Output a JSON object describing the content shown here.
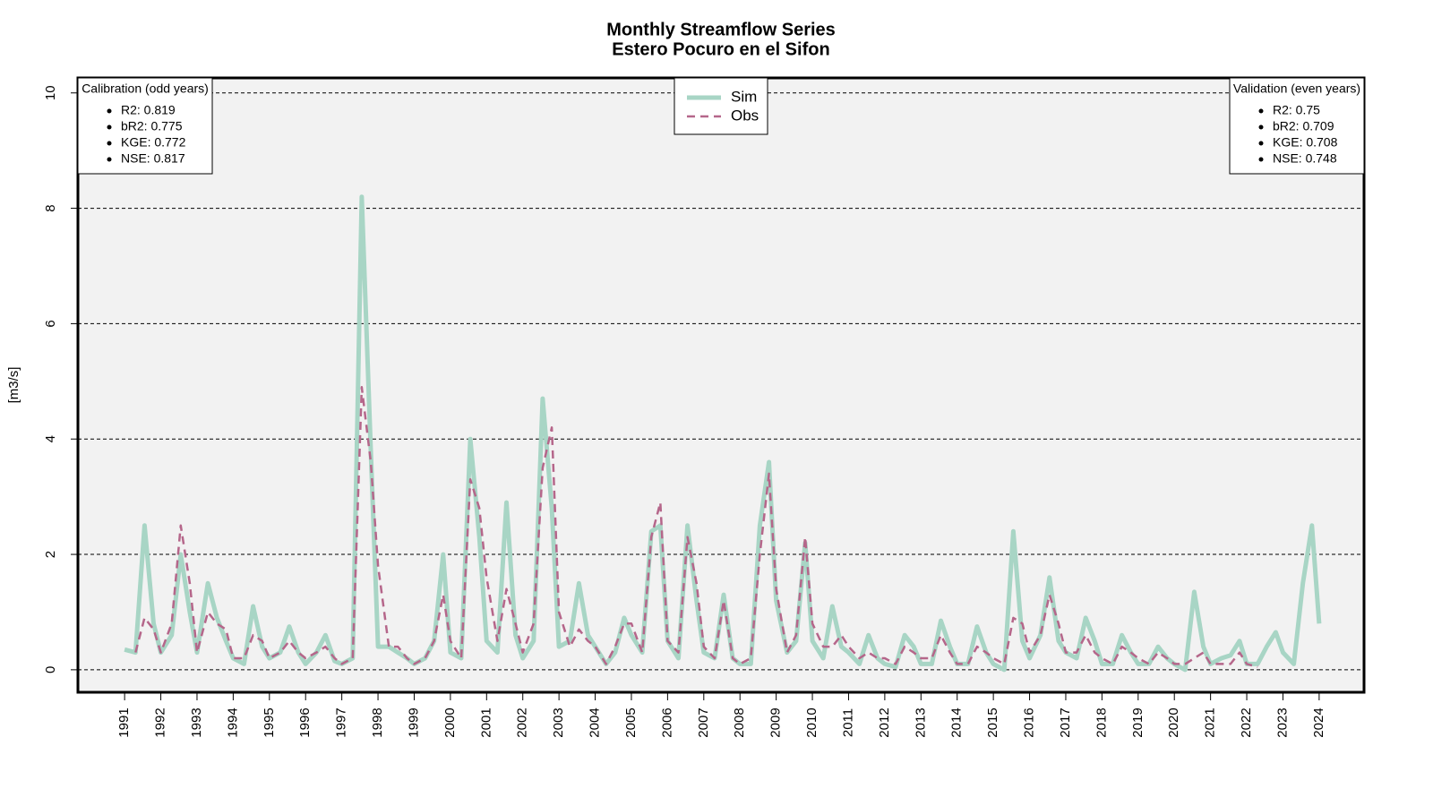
{
  "chart_data": {
    "type": "line",
    "title": "Monthly Streamflow Series",
    "subtitle": "Estero Pocuro en el Sifon",
    "y_label": "[m3/s]",
    "xlim": [
      1989.71,
      2025.24
    ],
    "ylim": [
      -0.39,
      10.26
    ],
    "xticks": [
      1991,
      1992,
      1993,
      1994,
      1995,
      1996,
      1997,
      1998,
      1999,
      2000,
      2001,
      2002,
      2003,
      2004,
      2005,
      2006,
      2007,
      2008,
      2009,
      2010,
      2011,
      2012,
      2013,
      2014,
      2015,
      2016,
      2017,
      2018,
      2019,
      2020,
      2021,
      2022,
      2023,
      2024
    ],
    "yticks": [
      0,
      2,
      4,
      6,
      8,
      10
    ],
    "grid": true,
    "legend": "top",
    "x": [
      1991,
      1991.3,
      1991.55,
      1991.8,
      1992,
      1992.3,
      1992.55,
      1992.8,
      1993,
      1993.3,
      1993.55,
      1993.8,
      1994,
      1994.3,
      1994.55,
      1994.8,
      1995,
      1995.3,
      1995.55,
      1995.8,
      1996,
      1996.3,
      1996.55,
      1996.8,
      1997,
      1997.3,
      1997.55,
      1997.8,
      1998,
      1998.3,
      1998.55,
      1998.8,
      1999,
      1999.3,
      1999.55,
      1999.8,
      2000,
      2000.3,
      2000.55,
      2000.8,
      2001,
      2001.3,
      2001.55,
      2001.8,
      2002,
      2002.3,
      2002.55,
      2002.8,
      2003,
      2003.3,
      2003.55,
      2003.8,
      2004,
      2004.3,
      2004.55,
      2004.8,
      2005,
      2005.3,
      2005.55,
      2005.8,
      2006,
      2006.3,
      2006.55,
      2006.8,
      2007,
      2007.3,
      2007.55,
      2007.8,
      2008,
      2008.3,
      2008.55,
      2008.8,
      2009,
      2009.3,
      2009.55,
      2009.8,
      2010,
      2010.3,
      2010.55,
      2010.8,
      2011,
      2011.3,
      2011.55,
      2011.8,
      2012,
      2012.3,
      2012.55,
      2012.8,
      2013,
      2013.3,
      2013.55,
      2013.8,
      2014,
      2014.3,
      2014.55,
      2014.8,
      2015,
      2015.3,
      2015.55,
      2015.8,
      2016,
      2016.3,
      2016.55,
      2016.8,
      2017,
      2017.3,
      2017.55,
      2017.8,
      2018,
      2018.3,
      2018.55,
      2018.8,
      2019,
      2019.3,
      2019.55,
      2019.8,
      2020,
      2020.3,
      2020.55,
      2020.8,
      2021,
      2021.3,
      2021.55,
      2021.8,
      2022,
      2022.3,
      2022.55,
      2022.8,
      2023,
      2023.3,
      2023.55,
      2023.8,
      2024
    ],
    "series": [
      {
        "name": "Sim",
        "color": "#a8d5c5",
        "values": [
          0.35,
          0.3,
          2.5,
          0.8,
          0.3,
          0.6,
          2.0,
          1.0,
          0.3,
          1.5,
          0.9,
          0.5,
          0.2,
          0.1,
          1.1,
          0.4,
          0.2,
          0.3,
          0.75,
          0.3,
          0.1,
          0.3,
          0.6,
          0.15,
          0.1,
          0.2,
          8.2,
          3.8,
          0.4,
          0.4,
          0.3,
          0.2,
          0.1,
          0.2,
          0.5,
          2.0,
          0.3,
          0.2,
          4.0,
          2.3,
          0.5,
          0.3,
          2.9,
          0.6,
          0.2,
          0.5,
          4.7,
          2.8,
          0.4,
          0.5,
          1.5,
          0.6,
          0.4,
          0.1,
          0.3,
          0.9,
          0.6,
          0.3,
          2.4,
          2.5,
          0.5,
          0.2,
          2.5,
          1.2,
          0.3,
          0.2,
          1.3,
          0.2,
          0.1,
          0.1,
          2.5,
          3.6,
          1.2,
          0.3,
          0.5,
          2.2,
          0.5,
          0.2,
          1.1,
          0.4,
          0.3,
          0.1,
          0.6,
          0.2,
          0.1,
          0.05,
          0.6,
          0.4,
          0.1,
          0.1,
          0.85,
          0.4,
          0.1,
          0.1,
          0.75,
          0.3,
          0.1,
          0.0,
          2.4,
          0.5,
          0.2,
          0.6,
          1.6,
          0.5,
          0.3,
          0.2,
          0.9,
          0.5,
          0.1,
          0.1,
          0.6,
          0.3,
          0.1,
          0.1,
          0.4,
          0.2,
          0.1,
          0.0,
          1.35,
          0.4,
          0.1,
          0.2,
          0.25,
          0.5,
          0.1,
          0.1,
          0.4,
          0.65,
          0.3,
          0.1,
          1.5,
          2.5,
          0.8
        ]
      },
      {
        "name": "Obs",
        "color": "#b5668a",
        "values": [
          null,
          0.3,
          0.9,
          0.7,
          0.3,
          0.8,
          2.5,
          1.5,
          0.3,
          1.0,
          0.8,
          0.7,
          0.2,
          0.2,
          0.6,
          0.5,
          0.2,
          0.3,
          0.5,
          0.3,
          0.2,
          0.3,
          0.4,
          0.2,
          0.1,
          0.2,
          4.9,
          3.6,
          1.8,
          0.4,
          0.4,
          0.2,
          0.1,
          0.2,
          0.5,
          1.3,
          0.5,
          0.2,
          3.3,
          2.8,
          1.6,
          0.5,
          1.4,
          0.8,
          0.3,
          0.8,
          3.5,
          4.2,
          1.0,
          0.4,
          0.7,
          0.5,
          0.4,
          0.1,
          0.4,
          0.8,
          0.8,
          0.3,
          2.3,
          2.9,
          0.5,
          0.3,
          2.3,
          1.5,
          0.4,
          0.2,
          1.2,
          0.2,
          0.1,
          0.2,
          2.0,
          3.4,
          1.4,
          0.3,
          0.6,
          2.3,
          0.8,
          0.4,
          0.4,
          0.6,
          0.4,
          0.2,
          0.3,
          0.2,
          0.2,
          0.1,
          0.4,
          0.3,
          0.2,
          0.2,
          0.6,
          0.3,
          0.1,
          0.1,
          0.4,
          0.3,
          0.2,
          0.1,
          0.9,
          0.8,
          0.3,
          0.6,
          1.3,
          0.8,
          0.3,
          0.3,
          0.6,
          0.3,
          0.2,
          0.1,
          0.4,
          0.3,
          0.2,
          0.1,
          0.3,
          0.2,
          0.1,
          0.1,
          0.2,
          0.3,
          0.1,
          0.1,
          0.1,
          0.3,
          0.1,
          0.05,
          null,
          null,
          null,
          null,
          null,
          null,
          null
        ]
      }
    ],
    "annotations": [
      {
        "title": "Calibration (odd years)",
        "items": [
          "R2: 0.819",
          "bR2: 0.775",
          "KGE: 0.772",
          "NSE: 0.817"
        ]
      },
      {
        "title": "Validation (even years)",
        "items": [
          "R2: 0.75",
          "bR2: 0.709",
          "KGE: 0.708",
          "NSE: 0.748"
        ]
      }
    ]
  }
}
